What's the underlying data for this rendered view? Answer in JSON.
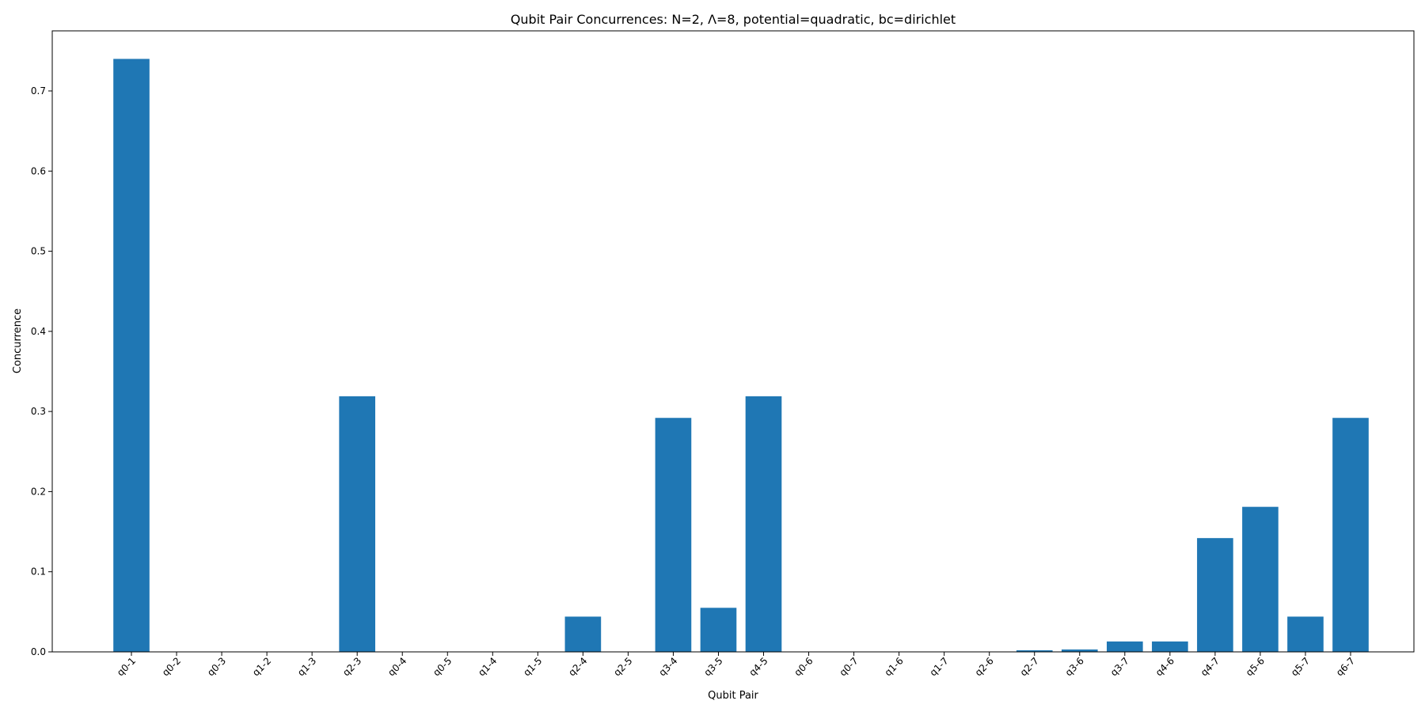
{
  "chart_data": {
    "type": "bar",
    "title": "Qubit Pair Concurrences: N=2, Λ=8, potential=quadratic, bc=dirichlet",
    "xlabel": "Qubit Pair",
    "ylabel": "Concurrence",
    "ylim": [
      0,
      0.775
    ],
    "yticks": [
      0.0,
      0.1,
      0.2,
      0.3,
      0.4,
      0.5,
      0.6,
      0.7
    ],
    "ytick_labels": [
      "0.0",
      "0.1",
      "0.2",
      "0.3",
      "0.4",
      "0.5",
      "0.6",
      "0.7"
    ],
    "grid": false,
    "bar_color": "#1f77b4",
    "categories": [
      "q0-1",
      "q0-2",
      "q0-3",
      "q1-2",
      "q1-3",
      "q2-3",
      "q0-4",
      "q0-5",
      "q1-4",
      "q1-5",
      "q2-4",
      "q2-5",
      "q3-4",
      "q3-5",
      "q4-5",
      "q0-6",
      "q0-7",
      "q1-6",
      "q1-7",
      "q2-6",
      "q2-7",
      "q3-6",
      "q3-7",
      "q4-6",
      "q4-7",
      "q5-6",
      "q5-7",
      "q6-7"
    ],
    "values": [
      0.74,
      0.0,
      0.0,
      0.0,
      0.0,
      0.319,
      0.0,
      0.0,
      0.0,
      0.0,
      0.044,
      0.0,
      0.292,
      0.055,
      0.319,
      0.0,
      0.0,
      0.0,
      0.0,
      0.0,
      0.002,
      0.003,
      0.013,
      0.013,
      0.142,
      0.181,
      0.044,
      0.292
    ]
  }
}
